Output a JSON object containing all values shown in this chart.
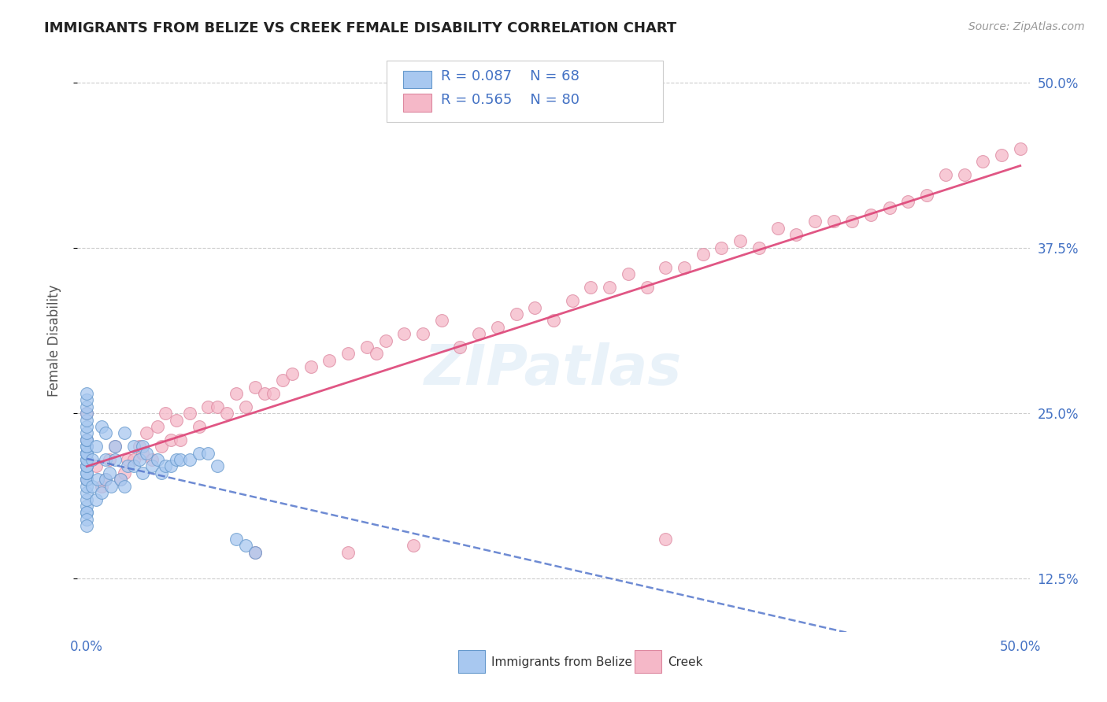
{
  "title": "IMMIGRANTS FROM BELIZE VS CREEK FEMALE DISABILITY CORRELATION CHART",
  "source": "Source: ZipAtlas.com",
  "ylabel": "Female Disability",
  "xlim": [
    -0.005,
    0.505
  ],
  "ylim": [
    0.085,
    0.525
  ],
  "xtick_positions": [
    0.0,
    0.5
  ],
  "xticklabels": [
    "0.0%",
    "50.0%"
  ],
  "ytick_positions": [
    0.125,
    0.25,
    0.375,
    0.5
  ],
  "ytick_labels": [
    "12.5%",
    "25.0%",
    "37.5%",
    "50.0%"
  ],
  "series1_name": "Immigrants from Belize",
  "series1_R": 0.087,
  "series1_N": 68,
  "series1_color": "#a8c8f0",
  "series1_edgecolor": "#6699cc",
  "series2_name": "Creek",
  "series2_R": 0.565,
  "series2_N": 80,
  "series2_color": "#f5b8c8",
  "series2_edgecolor": "#dd88a0",
  "watermark": "ZIPatlas",
  "background_color": "#ffffff",
  "grid_color": "#cccccc",
  "belize_x": [
    0.0,
    0.0,
    0.0,
    0.0,
    0.0,
    0.0,
    0.0,
    0.0,
    0.0,
    0.0,
    0.0,
    0.0,
    0.0,
    0.0,
    0.0,
    0.0,
    0.0,
    0.0,
    0.0,
    0.0,
    0.0,
    0.0,
    0.0,
    0.0,
    0.0,
    0.0,
    0.0,
    0.0,
    0.0,
    0.0,
    0.003,
    0.003,
    0.005,
    0.005,
    0.006,
    0.008,
    0.008,
    0.01,
    0.01,
    0.01,
    0.012,
    0.013,
    0.015,
    0.015,
    0.018,
    0.02,
    0.02,
    0.022,
    0.025,
    0.025,
    0.028,
    0.03,
    0.03,
    0.032,
    0.035,
    0.038,
    0.04,
    0.042,
    0.045,
    0.048,
    0.05,
    0.055,
    0.06,
    0.065,
    0.07,
    0.08,
    0.085,
    0.09
  ],
  "belize_y": [
    0.175,
    0.18,
    0.185,
    0.19,
    0.195,
    0.2,
    0.2,
    0.205,
    0.205,
    0.21,
    0.21,
    0.215,
    0.215,
    0.22,
    0.22,
    0.22,
    0.225,
    0.225,
    0.23,
    0.23,
    0.235,
    0.24,
    0.245,
    0.25,
    0.255,
    0.26,
    0.265,
    0.175,
    0.17,
    0.165,
    0.195,
    0.215,
    0.185,
    0.225,
    0.2,
    0.19,
    0.24,
    0.2,
    0.215,
    0.235,
    0.205,
    0.195,
    0.215,
    0.225,
    0.2,
    0.195,
    0.235,
    0.21,
    0.21,
    0.225,
    0.215,
    0.205,
    0.225,
    0.22,
    0.21,
    0.215,
    0.205,
    0.21,
    0.21,
    0.215,
    0.215,
    0.215,
    0.22,
    0.22,
    0.21,
    0.155,
    0.15,
    0.145
  ],
  "creek_x": [
    0.0,
    0.0,
    0.0,
    0.0,
    0.0,
    0.005,
    0.008,
    0.01,
    0.012,
    0.015,
    0.018,
    0.02,
    0.022,
    0.025,
    0.028,
    0.03,
    0.032,
    0.035,
    0.038,
    0.04,
    0.042,
    0.045,
    0.048,
    0.05,
    0.055,
    0.06,
    0.065,
    0.07,
    0.075,
    0.08,
    0.085,
    0.09,
    0.095,
    0.1,
    0.105,
    0.11,
    0.12,
    0.13,
    0.14,
    0.15,
    0.155,
    0.16,
    0.17,
    0.18,
    0.19,
    0.2,
    0.21,
    0.22,
    0.23,
    0.24,
    0.25,
    0.26,
    0.27,
    0.28,
    0.29,
    0.3,
    0.31,
    0.32,
    0.33,
    0.34,
    0.35,
    0.36,
    0.37,
    0.38,
    0.39,
    0.4,
    0.41,
    0.42,
    0.43,
    0.44,
    0.45,
    0.46,
    0.47,
    0.48,
    0.49,
    0.5,
    0.31,
    0.175,
    0.14,
    0.09
  ],
  "creek_y": [
    0.2,
    0.21,
    0.22,
    0.23,
    0.25,
    0.21,
    0.195,
    0.2,
    0.215,
    0.225,
    0.2,
    0.205,
    0.215,
    0.215,
    0.225,
    0.22,
    0.235,
    0.215,
    0.24,
    0.225,
    0.25,
    0.23,
    0.245,
    0.23,
    0.25,
    0.24,
    0.255,
    0.255,
    0.25,
    0.265,
    0.255,
    0.27,
    0.265,
    0.265,
    0.275,
    0.28,
    0.285,
    0.29,
    0.295,
    0.3,
    0.295,
    0.305,
    0.31,
    0.31,
    0.32,
    0.3,
    0.31,
    0.315,
    0.325,
    0.33,
    0.32,
    0.335,
    0.345,
    0.345,
    0.355,
    0.345,
    0.36,
    0.36,
    0.37,
    0.375,
    0.38,
    0.375,
    0.39,
    0.385,
    0.395,
    0.395,
    0.395,
    0.4,
    0.405,
    0.41,
    0.415,
    0.43,
    0.43,
    0.44,
    0.445,
    0.45,
    0.155,
    0.15,
    0.145,
    0.145
  ]
}
